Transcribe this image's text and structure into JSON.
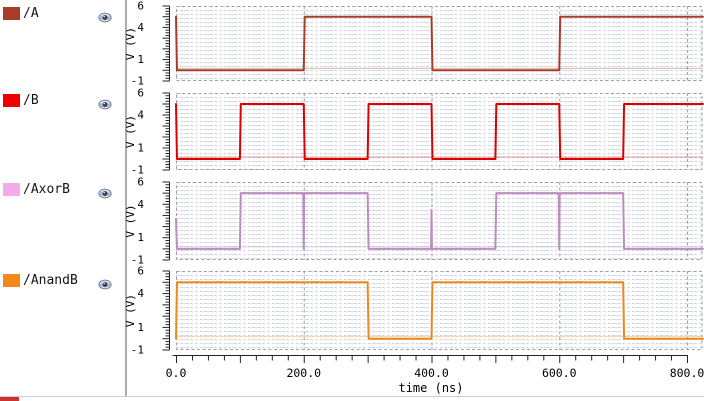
{
  "sidebar": {
    "items": [
      {
        "label": "/A",
        "eye_icon": "eye-icon"
      },
      {
        "label": "/B",
        "eye_icon": "eye-icon"
      },
      {
        "label": "/AxorB",
        "eye_icon": "eye-icon"
      },
      {
        "label": "/AnandB",
        "eye_icon": "eye-icon"
      }
    ]
  },
  "chart_data": {
    "type": "line",
    "xlabel": "time (ns)",
    "xlim": [
      0,
      800
    ],
    "x_display_max": 825,
    "x_tick_values": [
      0,
      200,
      400,
      600,
      800
    ],
    "x_tick_labels": [
      "0.0",
      "200.0",
      "400.0",
      "600.0",
      "800.0"
    ],
    "x_minor_step": 25,
    "ylabel": "V (V)",
    "ylim": [
      -1,
      6
    ],
    "y_tick_values": [
      6,
      4,
      1,
      -1
    ],
    "y_tick_labels": [
      "6",
      "4",
      "1",
      "-1"
    ],
    "y_minor_step": 0.25,
    "grid": "fine dotted mesh with dashed major lines every 200 ns",
    "series": [
      {
        "name": "/A",
        "color": "#a83c28",
        "swatch_color": "#a83c28",
        "points": [
          [
            0,
            5
          ],
          [
            1.5,
            0
          ],
          [
            200,
            0
          ],
          [
            201.5,
            5
          ],
          [
            400,
            5
          ],
          [
            401.5,
            0
          ],
          [
            600,
            0
          ],
          [
            601.5,
            5
          ],
          [
            825,
            5
          ]
        ]
      },
      {
        "name": "/B",
        "color": "#dd0000",
        "swatch_color": "#ee0000",
        "points": [
          [
            0,
            5
          ],
          [
            1.5,
            0
          ],
          [
            100,
            0
          ],
          [
            101.5,
            5
          ],
          [
            200,
            5
          ],
          [
            201.5,
            0
          ],
          [
            300,
            0
          ],
          [
            301.5,
            5
          ],
          [
            400,
            5
          ],
          [
            401.5,
            0
          ],
          [
            500,
            0
          ],
          [
            501.5,
            5
          ],
          [
            600,
            5
          ],
          [
            601.5,
            0
          ],
          [
            700,
            0
          ],
          [
            701.5,
            5
          ],
          [
            825,
            5
          ]
        ]
      },
      {
        "name": "/AxorB",
        "color": "#bd8cc4",
        "swatch_color": "#f4ace8",
        "points": [
          [
            0,
            2.7
          ],
          [
            1.5,
            0
          ],
          [
            100,
            0
          ],
          [
            101.5,
            5
          ],
          [
            199.3,
            5
          ],
          [
            200,
            0
          ],
          [
            200.7,
            5
          ],
          [
            300,
            5
          ],
          [
            301.5,
            0
          ],
          [
            399.3,
            0
          ],
          [
            400,
            3.5
          ],
          [
            400.7,
            0
          ],
          [
            500,
            0
          ],
          [
            501.5,
            5
          ],
          [
            599.3,
            5
          ],
          [
            600,
            0
          ],
          [
            600.7,
            5
          ],
          [
            700,
            5
          ],
          [
            701.5,
            0
          ],
          [
            825,
            0
          ]
        ]
      },
      {
        "name": "/AnandB",
        "color": "#ed8a1d",
        "swatch_color": "#f5881b",
        "points": [
          [
            0,
            0
          ],
          [
            1.5,
            5
          ],
          [
            300,
            5
          ],
          [
            301.5,
            0
          ],
          [
            400,
            0
          ],
          [
            401.5,
            5
          ],
          [
            700,
            5
          ],
          [
            701.5,
            0
          ],
          [
            825,
            0
          ]
        ]
      }
    ]
  }
}
